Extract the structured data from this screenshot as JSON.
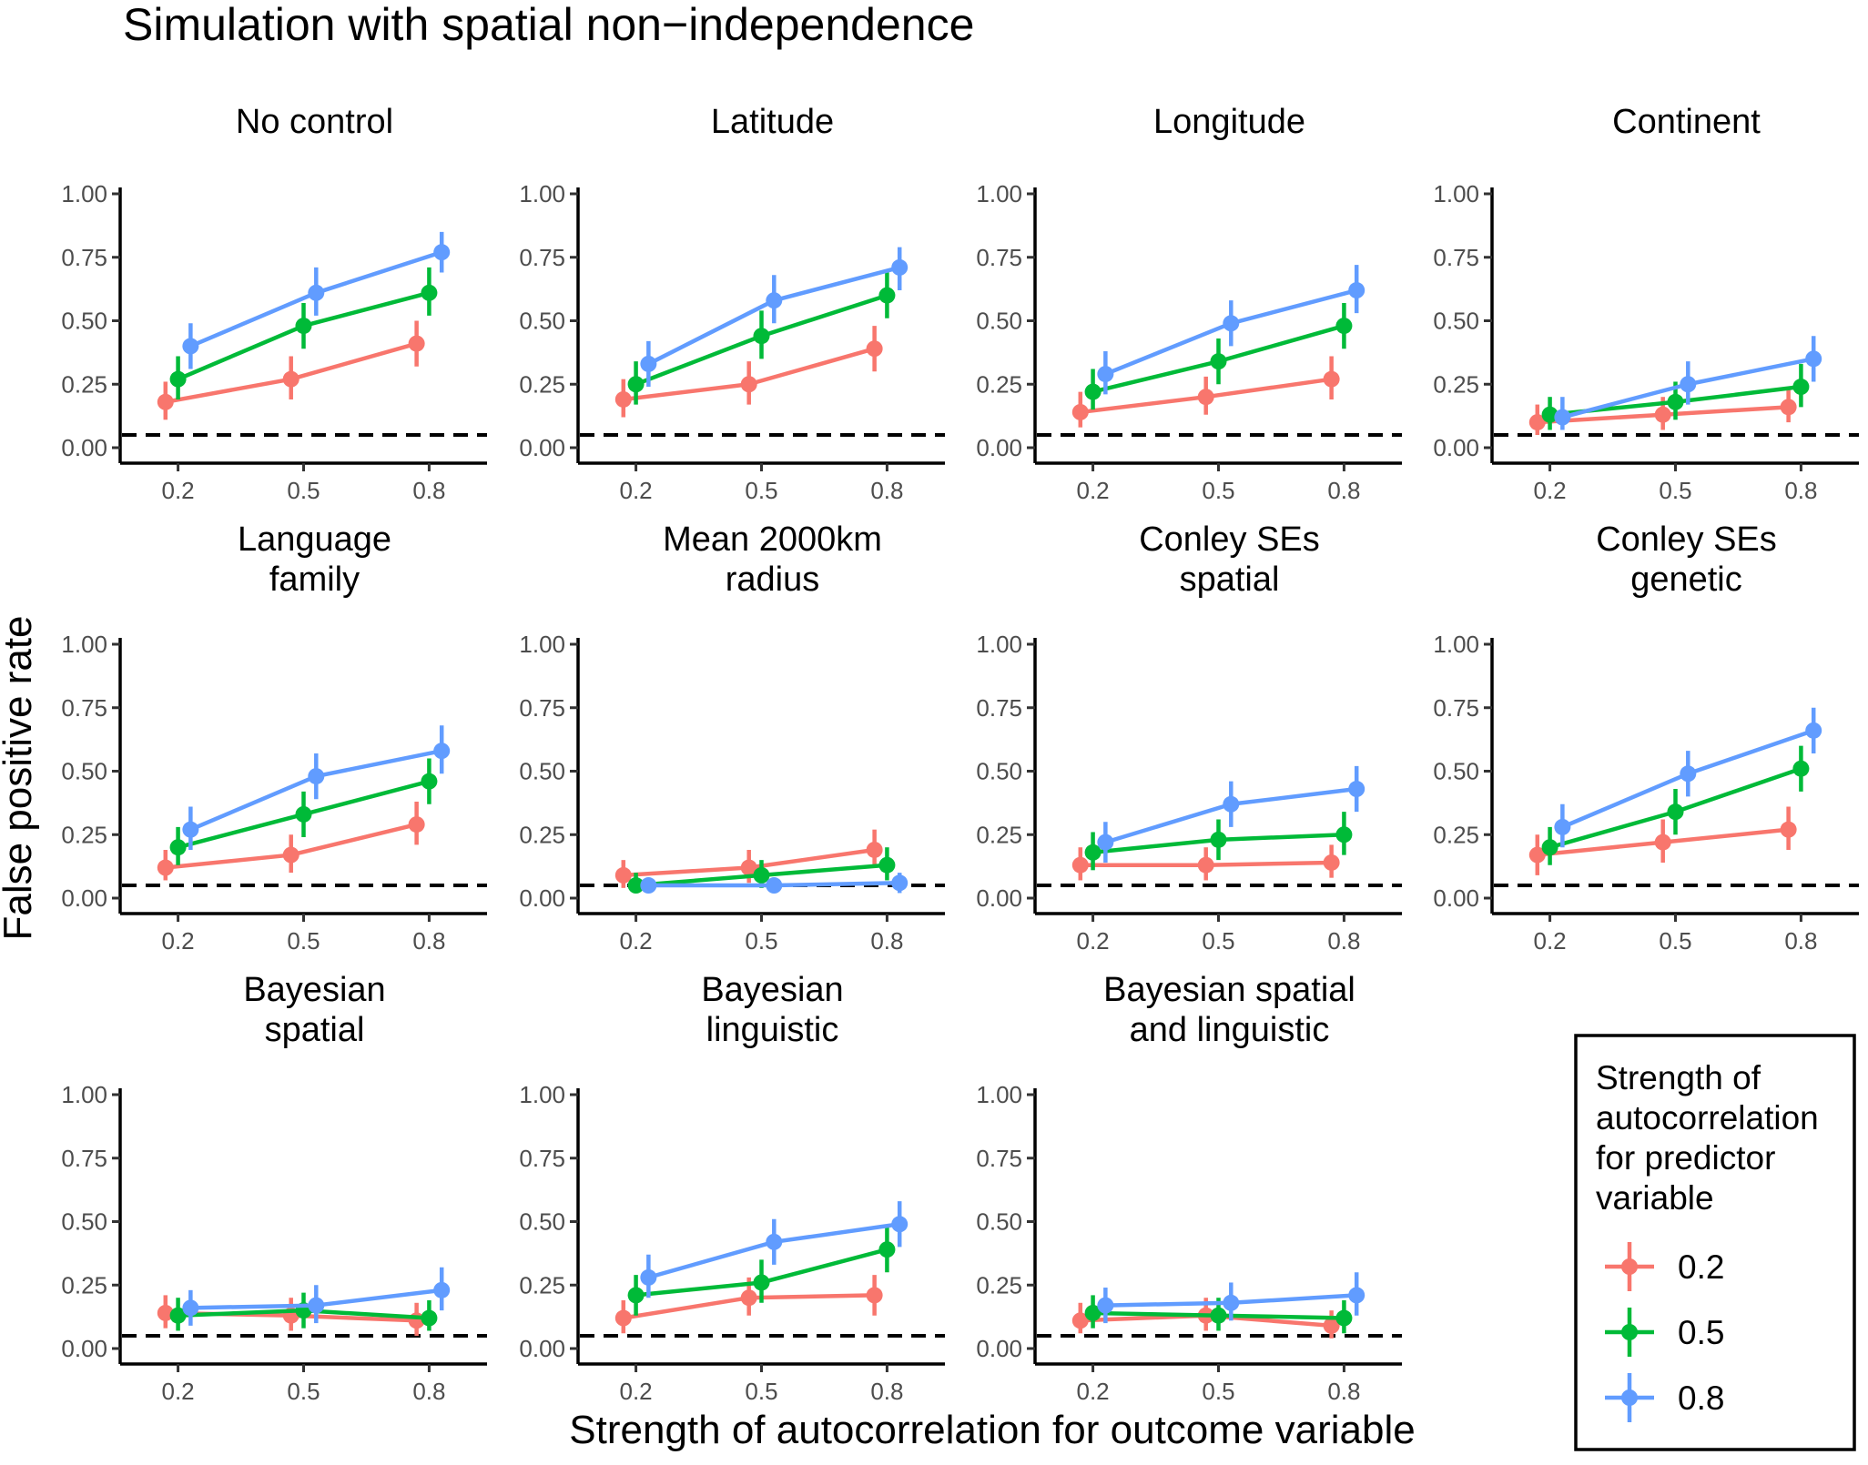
{
  "chart_data": {
    "type": "line",
    "title": "Simulation with spatial non−independence",
    "xlabel": "Strength of autocorrelation for outcome variable",
    "ylabel": "False positive rate",
    "x": [
      0.2,
      0.5,
      0.8
    ],
    "x_tick_labels": [
      "0.2",
      "0.5",
      "0.8"
    ],
    "y_ticks": [
      0,
      0.25,
      0.5,
      0.75,
      1.0
    ],
    "y_tick_labels": [
      "0.00",
      "0.25",
      "0.50",
      "0.75",
      "1.00"
    ],
    "ylim": [
      0,
      1.0
    ],
    "reference_line": {
      "y": 0.05,
      "style": "dashed"
    },
    "legend": {
      "title_lines": [
        "Strength of",
        "autocorrelation",
        "for predictor",
        "variable"
      ],
      "entries": [
        {
          "label": "0.2",
          "color": "#F8766D"
        },
        {
          "label": "0.5",
          "color": "#00BA38"
        },
        {
          "label": "0.8",
          "color": "#619CFF"
        }
      ],
      "position": "bottom-right"
    },
    "panels": [
      {
        "title": [
          "No control"
        ],
        "series": [
          {
            "name": "0.2",
            "values": [
              0.18,
              0.27,
              0.41
            ],
            "lower": [
              0.11,
              0.19,
              0.32
            ],
            "upper": [
              0.26,
              0.36,
              0.5
            ]
          },
          {
            "name": "0.5",
            "values": [
              0.27,
              0.48,
              0.61
            ],
            "lower": [
              0.19,
              0.39,
              0.52
            ],
            "upper": [
              0.36,
              0.57,
              0.71
            ]
          },
          {
            "name": "0.8",
            "values": [
              0.4,
              0.61,
              0.77
            ],
            "lower": [
              0.31,
              0.52,
              0.69
            ],
            "upper": [
              0.49,
              0.71,
              0.85
            ]
          }
        ]
      },
      {
        "title": [
          "Latitude"
        ],
        "series": [
          {
            "name": "0.2",
            "values": [
              0.19,
              0.25,
              0.39
            ],
            "lower": [
              0.12,
              0.17,
              0.3
            ],
            "upper": [
              0.27,
              0.34,
              0.48
            ]
          },
          {
            "name": "0.5",
            "values": [
              0.25,
              0.44,
              0.6
            ],
            "lower": [
              0.17,
              0.35,
              0.51
            ],
            "upper": [
              0.34,
              0.54,
              0.69
            ]
          },
          {
            "name": "0.8",
            "values": [
              0.33,
              0.58,
              0.71
            ],
            "lower": [
              0.24,
              0.49,
              0.62
            ],
            "upper": [
              0.42,
              0.68,
              0.79
            ]
          }
        ]
      },
      {
        "title": [
          "Longitude"
        ],
        "series": [
          {
            "name": "0.2",
            "values": [
              0.14,
              0.2,
              0.27
            ],
            "lower": [
              0.08,
              0.13,
              0.19
            ],
            "upper": [
              0.22,
              0.28,
              0.36
            ]
          },
          {
            "name": "0.5",
            "values": [
              0.22,
              0.34,
              0.48
            ],
            "lower": [
              0.15,
              0.25,
              0.39
            ],
            "upper": [
              0.31,
              0.43,
              0.57
            ]
          },
          {
            "name": "0.8",
            "values": [
              0.29,
              0.49,
              0.62
            ],
            "lower": [
              0.21,
              0.4,
              0.53
            ],
            "upper": [
              0.38,
              0.58,
              0.72
            ]
          }
        ]
      },
      {
        "title": [
          "Continent"
        ],
        "series": [
          {
            "name": "0.2",
            "values": [
              0.1,
              0.13,
              0.16
            ],
            "lower": [
              0.05,
              0.07,
              0.1
            ],
            "upper": [
              0.17,
              0.2,
              0.24
            ]
          },
          {
            "name": "0.5",
            "values": [
              0.13,
              0.18,
              0.24
            ],
            "lower": [
              0.07,
              0.11,
              0.16
            ],
            "upper": [
              0.2,
              0.26,
              0.33
            ]
          },
          {
            "name": "0.8",
            "values": [
              0.12,
              0.25,
              0.35
            ],
            "lower": [
              0.07,
              0.17,
              0.26
            ],
            "upper": [
              0.2,
              0.34,
              0.44
            ]
          }
        ]
      },
      {
        "title": [
          "Language",
          "family"
        ],
        "series": [
          {
            "name": "0.2",
            "values": [
              0.12,
              0.17,
              0.29
            ],
            "lower": [
              0.07,
              0.1,
              0.21
            ],
            "upper": [
              0.19,
              0.25,
              0.38
            ]
          },
          {
            "name": "0.5",
            "values": [
              0.2,
              0.33,
              0.46
            ],
            "lower": [
              0.13,
              0.24,
              0.37
            ],
            "upper": [
              0.28,
              0.42,
              0.55
            ]
          },
          {
            "name": "0.8",
            "values": [
              0.27,
              0.48,
              0.58
            ],
            "lower": [
              0.19,
              0.39,
              0.49
            ],
            "upper": [
              0.36,
              0.57,
              0.68
            ]
          }
        ]
      },
      {
        "title": [
          "Mean 2000km",
          "radius"
        ],
        "series": [
          {
            "name": "0.2",
            "values": [
              0.09,
              0.12,
              0.19
            ],
            "lower": [
              0.04,
              0.06,
              0.12
            ],
            "upper": [
              0.15,
              0.19,
              0.27
            ]
          },
          {
            "name": "0.5",
            "values": [
              0.05,
              0.09,
              0.13
            ],
            "lower": [
              0.02,
              0.04,
              0.07
            ],
            "upper": [
              0.1,
              0.15,
              0.2
            ]
          },
          {
            "name": "0.8",
            "values": [
              0.05,
              0.05,
              0.06
            ],
            "lower": [
              0.02,
              0.02,
              0.02
            ],
            "upper": [
              0.08,
              0.08,
              0.1
            ]
          }
        ]
      },
      {
        "title": [
          "Conley SEs",
          "spatial"
        ],
        "series": [
          {
            "name": "0.2",
            "values": [
              0.13,
              0.13,
              0.14
            ],
            "lower": [
              0.07,
              0.07,
              0.08
            ],
            "upper": [
              0.2,
              0.2,
              0.21
            ]
          },
          {
            "name": "0.5",
            "values": [
              0.18,
              0.23,
              0.25
            ],
            "lower": [
              0.11,
              0.15,
              0.17
            ],
            "upper": [
              0.26,
              0.31,
              0.34
            ]
          },
          {
            "name": "0.8",
            "values": [
              0.22,
              0.37,
              0.43
            ],
            "lower": [
              0.14,
              0.28,
              0.34
            ],
            "upper": [
              0.3,
              0.46,
              0.52
            ]
          }
        ]
      },
      {
        "title": [
          "Conley SEs",
          "genetic"
        ],
        "series": [
          {
            "name": "0.2",
            "values": [
              0.17,
              0.22,
              0.27
            ],
            "lower": [
              0.09,
              0.14,
              0.19
            ],
            "upper": [
              0.25,
              0.31,
              0.36
            ]
          },
          {
            "name": "0.5",
            "values": [
              0.2,
              0.34,
              0.51
            ],
            "lower": [
              0.13,
              0.25,
              0.42
            ],
            "upper": [
              0.28,
              0.43,
              0.6
            ]
          },
          {
            "name": "0.8",
            "values": [
              0.28,
              0.49,
              0.66
            ],
            "lower": [
              0.2,
              0.4,
              0.57
            ],
            "upper": [
              0.37,
              0.58,
              0.75
            ]
          }
        ]
      },
      {
        "title": [
          "Bayesian",
          "spatial"
        ],
        "series": [
          {
            "name": "0.2",
            "values": [
              0.14,
              0.13,
              0.11
            ],
            "lower": [
              0.08,
              0.07,
              0.05
            ],
            "upper": [
              0.21,
              0.2,
              0.18
            ]
          },
          {
            "name": "0.5",
            "values": [
              0.13,
              0.15,
              0.12
            ],
            "lower": [
              0.07,
              0.08,
              0.07
            ],
            "upper": [
              0.2,
              0.22,
              0.19
            ]
          },
          {
            "name": "0.8",
            "values": [
              0.16,
              0.17,
              0.23
            ],
            "lower": [
              0.09,
              0.1,
              0.15
            ],
            "upper": [
              0.23,
              0.25,
              0.32
            ]
          }
        ]
      },
      {
        "title": [
          "Bayesian",
          "linguistic"
        ],
        "series": [
          {
            "name": "0.2",
            "values": [
              0.12,
              0.2,
              0.21
            ],
            "lower": [
              0.06,
              0.13,
              0.13
            ],
            "upper": [
              0.19,
              0.28,
              0.29
            ]
          },
          {
            "name": "0.5",
            "values": [
              0.21,
              0.26,
              0.39
            ],
            "lower": [
              0.13,
              0.18,
              0.3
            ],
            "upper": [
              0.29,
              0.35,
              0.48
            ]
          },
          {
            "name": "0.8",
            "values": [
              0.28,
              0.42,
              0.49
            ],
            "lower": [
              0.2,
              0.33,
              0.4
            ],
            "upper": [
              0.37,
              0.51,
              0.58
            ]
          }
        ]
      },
      {
        "title": [
          "Bayesian spatial",
          "and linguistic"
        ],
        "series": [
          {
            "name": "0.2",
            "values": [
              0.11,
              0.13,
              0.09
            ],
            "lower": [
              0.06,
              0.07,
              0.04
            ],
            "upper": [
              0.18,
              0.2,
              0.15
            ]
          },
          {
            "name": "0.5",
            "values": [
              0.14,
              0.13,
              0.12
            ],
            "lower": [
              0.08,
              0.07,
              0.06
            ],
            "upper": [
              0.21,
              0.2,
              0.19
            ]
          },
          {
            "name": "0.8",
            "values": [
              0.17,
              0.18,
              0.21
            ],
            "lower": [
              0.1,
              0.11,
              0.13
            ],
            "upper": [
              0.24,
              0.26,
              0.3
            ]
          }
        ]
      }
    ]
  }
}
